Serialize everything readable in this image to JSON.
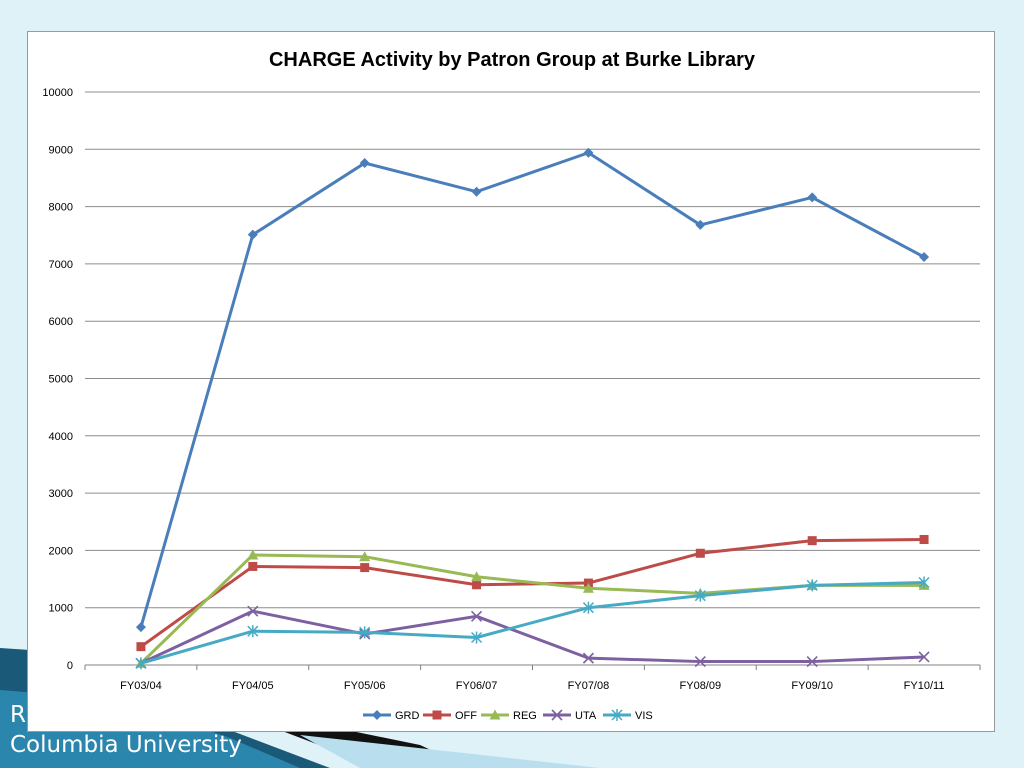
{
  "footer": {
    "line1": "R",
    "line2": "Columbia University"
  },
  "colors": {
    "background": "#dff2f8",
    "grid": "#8c8c8c"
  },
  "chart_data": {
    "type": "line",
    "title": "CHARGE Activity by Patron Group at Burke Library",
    "xlabel": "",
    "ylabel": "",
    "ylim": [
      0,
      10000
    ],
    "yticks": [
      0,
      1000,
      2000,
      3000,
      4000,
      5000,
      6000,
      7000,
      8000,
      9000,
      10000
    ],
    "grid": true,
    "legend_position": "bottom",
    "categories": [
      "FY03/04",
      "FY04/05",
      "FY05/06",
      "FY06/07",
      "FY07/08",
      "FY08/09",
      "FY09/10",
      "FY10/11"
    ],
    "series": [
      {
        "name": "GRD",
        "color": "#4a7ebb",
        "marker": "diamond",
        "values": [
          660,
          7510,
          8760,
          8260,
          8940,
          7680,
          8160,
          7120
        ]
      },
      {
        "name": "OFF",
        "color": "#be4b48",
        "marker": "square",
        "values": [
          320,
          1720,
          1700,
          1400,
          1430,
          1950,
          2170,
          2190
        ]
      },
      {
        "name": "REG",
        "color": "#98b954",
        "marker": "triangle",
        "values": [
          30,
          1920,
          1890,
          1540,
          1340,
          1250,
          1390,
          1390
        ]
      },
      {
        "name": "UTA",
        "color": "#7d60a0",
        "marker": "x",
        "values": [
          30,
          940,
          540,
          850,
          120,
          60,
          60,
          140
        ]
      },
      {
        "name": "VIS",
        "color": "#46aac5",
        "marker": "star",
        "values": [
          30,
          590,
          570,
          480,
          1000,
          1210,
          1390,
          1440
        ]
      }
    ]
  }
}
